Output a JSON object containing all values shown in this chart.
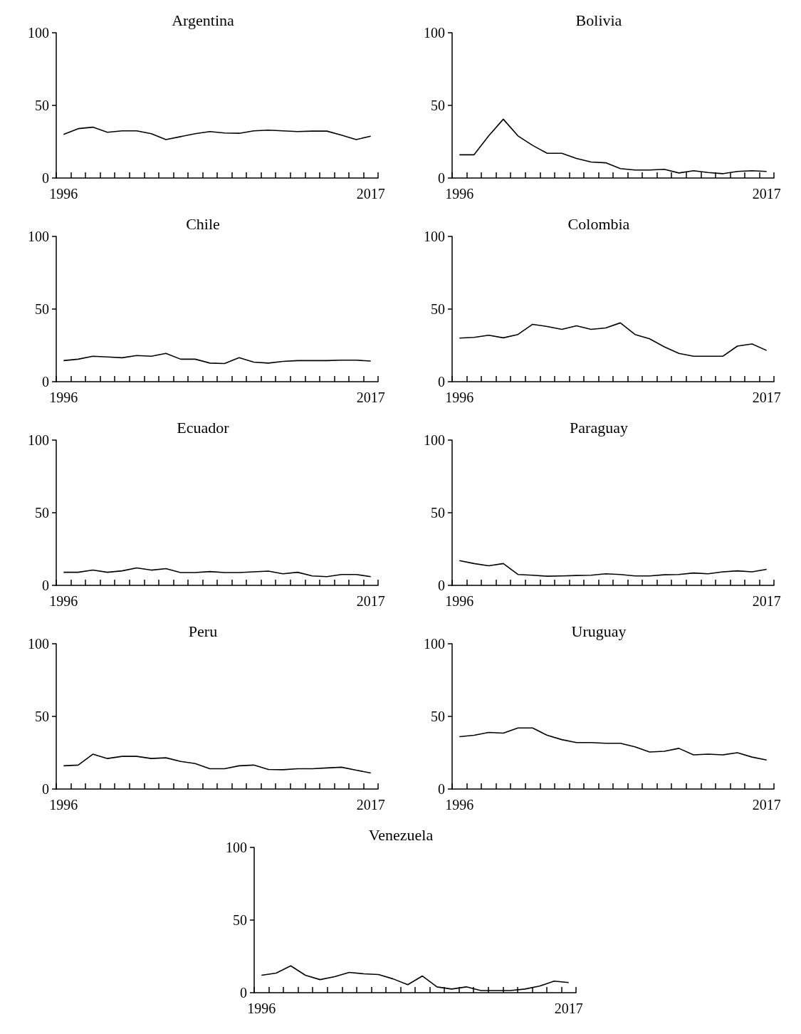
{
  "chart_data": [
    {
      "type": "line",
      "title": "Argentina",
      "categories": [
        "1996",
        null,
        null,
        null,
        null,
        null,
        null,
        null,
        null,
        null,
        null,
        null,
        null,
        null,
        null,
        null,
        null,
        null,
        null,
        null,
        null,
        "2017"
      ],
      "values": [
        30,
        34,
        35,
        31.5,
        32.5,
        32.5,
        30.5,
        26.5,
        28.5,
        30.5,
        32,
        31,
        30.8,
        32.5,
        33,
        32.5,
        32,
        32.3,
        32.3,
        29.5,
        26.5,
        28.8
      ],
      "color": "#000000",
      "ylim": [
        0,
        100
      ],
      "yticks": [
        0,
        50,
        100
      ],
      "marker": "none"
    },
    {
      "type": "line",
      "title": "Bolivia",
      "categories": [
        "1996",
        null,
        null,
        null,
        null,
        null,
        null,
        null,
        null,
        null,
        null,
        null,
        null,
        null,
        null,
        null,
        null,
        null,
        null,
        null,
        null,
        "2017"
      ],
      "values": [
        16,
        16,
        29,
        40.5,
        29,
        22.5,
        17,
        17,
        13.5,
        11,
        10.5,
        6.5,
        5.5,
        5.5,
        6,
        3.5,
        5,
        3.8,
        3,
        4.5,
        5,
        4.5
      ],
      "color": "#000000",
      "ylim": [
        0,
        100
      ],
      "yticks": [
        0,
        50,
        100
      ],
      "marker": "none"
    },
    {
      "type": "line",
      "title": "Chile",
      "categories": [
        "1996",
        null,
        null,
        null,
        null,
        null,
        null,
        null,
        null,
        null,
        null,
        null,
        null,
        null,
        null,
        null,
        null,
        null,
        null,
        null,
        null,
        "2017"
      ],
      "values": [
        14.5,
        15.5,
        17.5,
        17,
        16.5,
        18,
        17.5,
        19.5,
        15.5,
        15.5,
        12.8,
        12.5,
        16.5,
        13.5,
        12.8,
        14,
        14.5,
        14.5,
        14.5,
        14.8,
        14.8,
        14.2
      ],
      "color": "#000000",
      "ylim": [
        0,
        100
      ],
      "yticks": [
        0,
        50,
        100
      ],
      "marker": "none"
    },
    {
      "type": "line",
      "title": "Colombia",
      "categories": [
        "1996",
        null,
        null,
        null,
        null,
        null,
        null,
        null,
        null,
        null,
        null,
        null,
        null,
        null,
        null,
        null,
        null,
        null,
        null,
        null,
        null,
        "2017"
      ],
      "values": [
        30,
        30.5,
        32,
        30.2,
        32.5,
        39.5,
        38,
        36,
        38.5,
        36,
        37,
        40.5,
        32.5,
        29.5,
        24,
        19.5,
        17.5,
        17.5,
        17.5,
        24.5,
        26,
        21.5
      ],
      "color": "#000000",
      "ylim": [
        0,
        100
      ],
      "yticks": [
        0,
        50,
        100
      ],
      "marker": "none"
    },
    {
      "type": "line",
      "title": "Ecuador",
      "categories": [
        "1996",
        null,
        null,
        null,
        null,
        null,
        null,
        null,
        null,
        null,
        null,
        null,
        null,
        null,
        null,
        null,
        null,
        null,
        null,
        null,
        null,
        "2017"
      ],
      "values": [
        9,
        9,
        10.5,
        9,
        10,
        12,
        10.5,
        11.5,
        8.8,
        8.8,
        9.5,
        8.8,
        8.8,
        9.3,
        9.8,
        8,
        9,
        6.5,
        6,
        7.5,
        7.5,
        6
      ],
      "color": "#000000",
      "ylim": [
        0,
        100
      ],
      "yticks": [
        0,
        50,
        100
      ],
      "marker": "none"
    },
    {
      "type": "line",
      "title": "Paraguay",
      "categories": [
        "1996",
        null,
        null,
        null,
        null,
        null,
        null,
        null,
        null,
        null,
        null,
        null,
        null,
        null,
        null,
        null,
        null,
        null,
        null,
        null,
        null,
        "2017"
      ],
      "values": [
        17,
        15,
        13.5,
        15,
        7.5,
        7,
        6.3,
        6.5,
        6.8,
        7,
        8,
        7.5,
        6.5,
        6.5,
        7.3,
        7.5,
        8.5,
        8,
        9.3,
        10,
        9.3,
        11
      ],
      "color": "#000000",
      "ylim": [
        0,
        100
      ],
      "yticks": [
        0,
        50,
        100
      ],
      "marker": "none"
    },
    {
      "type": "line",
      "title": "Peru",
      "categories": [
        "1996",
        null,
        null,
        null,
        null,
        null,
        null,
        null,
        null,
        null,
        null,
        null,
        null,
        null,
        null,
        null,
        null,
        null,
        null,
        null,
        null,
        "2017"
      ],
      "values": [
        16,
        16.5,
        24,
        21,
        22.5,
        22.5,
        21,
        21.5,
        19,
        17.5,
        14,
        14,
        16,
        16.5,
        13.5,
        13.3,
        14,
        14,
        14.5,
        15,
        13,
        11
      ],
      "color": "#000000",
      "ylim": [
        0,
        100
      ],
      "yticks": [
        0,
        50,
        100
      ],
      "marker": "none"
    },
    {
      "type": "line",
      "title": "Uruguay",
      "categories": [
        "1996",
        null,
        null,
        null,
        null,
        null,
        null,
        null,
        null,
        null,
        null,
        null,
        null,
        null,
        null,
        null,
        null,
        null,
        null,
        null,
        null,
        "2017"
      ],
      "values": [
        36,
        37,
        39,
        38.5,
        42,
        42,
        37,
        34,
        32,
        32,
        31.5,
        31.5,
        29,
        25.5,
        26,
        28,
        23.5,
        24,
        23.5,
        25,
        22,
        20
      ],
      "color": "#000000",
      "ylim": [
        0,
        100
      ],
      "yticks": [
        0,
        50,
        100
      ],
      "marker": "none"
    },
    {
      "type": "line",
      "title": "Venezuela",
      "categories": [
        "1996",
        null,
        null,
        null,
        null,
        null,
        null,
        null,
        null,
        null,
        null,
        null,
        null,
        null,
        null,
        null,
        null,
        null,
        null,
        null,
        null,
        "2017"
      ],
      "values": [
        12,
        13.5,
        18.5,
        12,
        9,
        11,
        14,
        13,
        12.5,
        9.5,
        5.5,
        11.5,
        4,
        2.5,
        4,
        1.5,
        1.5,
        1.5,
        2.5,
        4.5,
        8,
        7
      ],
      "color": "#000000",
      "ylim": [
        0,
        100
      ],
      "yticks": [
        0,
        50,
        100
      ],
      "marker": "none"
    }
  ]
}
